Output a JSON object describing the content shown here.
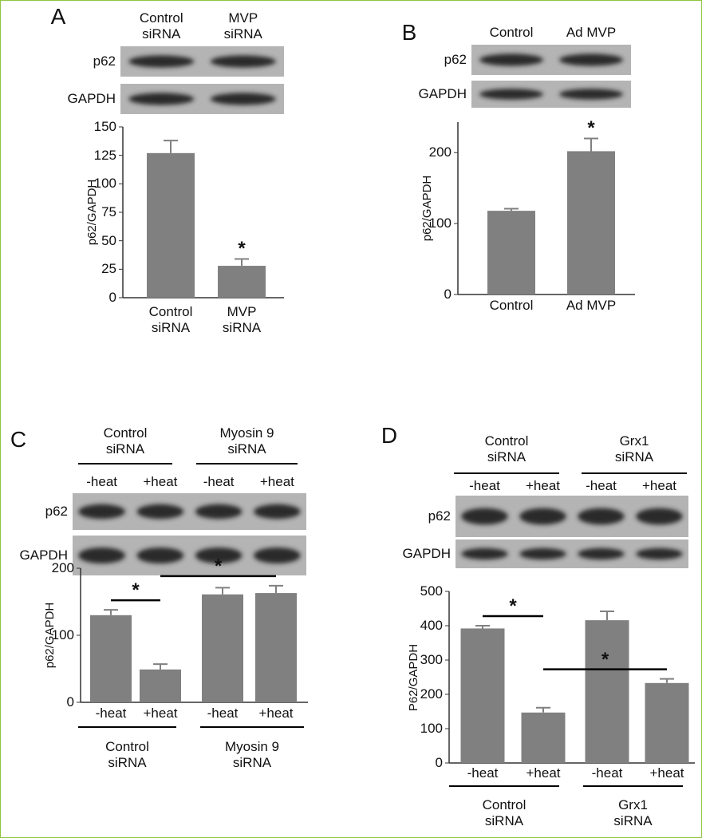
{
  "chart_data": [
    {
      "type": "bar",
      "panel": "A",
      "blot": {
        "lanes": [
          "Control\nsiRNA",
          "MVP\nsiRNA"
        ],
        "rows": [
          "p62",
          "GAPDH"
        ]
      },
      "ylabel": "p62/GAPDH",
      "categories": [
        "Control\nsiRNA",
        "MVP\nsiRNA"
      ],
      "values": [
        127,
        28
      ],
      "errors": [
        11,
        6
      ],
      "ylim": [
        0,
        150
      ],
      "yticks": [
        0,
        25,
        50,
        75,
        100,
        125,
        150
      ],
      "color": "#808080",
      "annotations": [
        {
          "text": "*",
          "bars": [
            1
          ]
        }
      ]
    },
    {
      "type": "bar",
      "panel": "B",
      "blot": {
        "lanes": [
          "Control",
          "Ad MVP"
        ],
        "rows": [
          "p62",
          "GAPDH"
        ]
      },
      "ylabel": "p62/GAPDH",
      "categories": [
        "Control",
        "Ad MVP"
      ],
      "values": [
        118,
        202
      ],
      "errors": [
        3,
        18
      ],
      "ylim": [
        0,
        243
      ],
      "yticks": [
        0,
        100,
        200
      ],
      "color": "#808080",
      "annotations": [
        {
          "text": "*",
          "bars": [
            1
          ]
        }
      ]
    },
    {
      "type": "bar",
      "panel": "C",
      "blot": {
        "groups": [
          "Control\nsiRNA",
          "Myosin 9\nsiRNA"
        ],
        "lanes": [
          "-heat",
          "+heat",
          "-heat",
          "+heat"
        ],
        "rows": [
          "p62",
          "GAPDH"
        ]
      },
      "ylabel": "p62/GAPDH",
      "categories": [
        "-heat",
        "+heat",
        "-heat",
        "+heat"
      ],
      "groups": [
        "Control\nsiRNA",
        "Myosin 9\nsiRNA"
      ],
      "values": [
        130,
        49,
        161,
        163
      ],
      "errors": [
        8,
        8,
        10,
        11
      ],
      "ylim": [
        0,
        200
      ],
      "yticks": [
        0,
        100,
        200
      ],
      "color": "#808080",
      "annotations": [
        {
          "text": "*",
          "bars": [
            0,
            1
          ]
        },
        {
          "text": "*",
          "bars": [
            1,
            3
          ]
        }
      ]
    },
    {
      "type": "bar",
      "panel": "D",
      "blot": {
        "groups": [
          "Control\nsiRNA",
          "Grx1\nsiRNA"
        ],
        "lanes": [
          "-heat",
          "+heat",
          "-heat",
          "+heat"
        ],
        "rows": [
          "p62",
          "GAPDH"
        ]
      },
      "ylabel": "P62/GAPDH",
      "categories": [
        "-heat",
        "+heat",
        "-heat",
        "+heat"
      ],
      "groups": [
        "Control\nsiRNA",
        "Grx1\nsiRNA"
      ],
      "values": [
        392,
        147,
        416,
        233
      ],
      "errors": [
        8,
        14,
        26,
        12
      ],
      "ylim": [
        0,
        500
      ],
      "yticks": [
        0,
        100,
        200,
        300,
        400,
        500
      ],
      "color": "#808080",
      "annotations": [
        {
          "text": "*",
          "bars": [
            0,
            1
          ]
        },
        {
          "text": "*",
          "bars": [
            1,
            3
          ]
        }
      ]
    }
  ]
}
